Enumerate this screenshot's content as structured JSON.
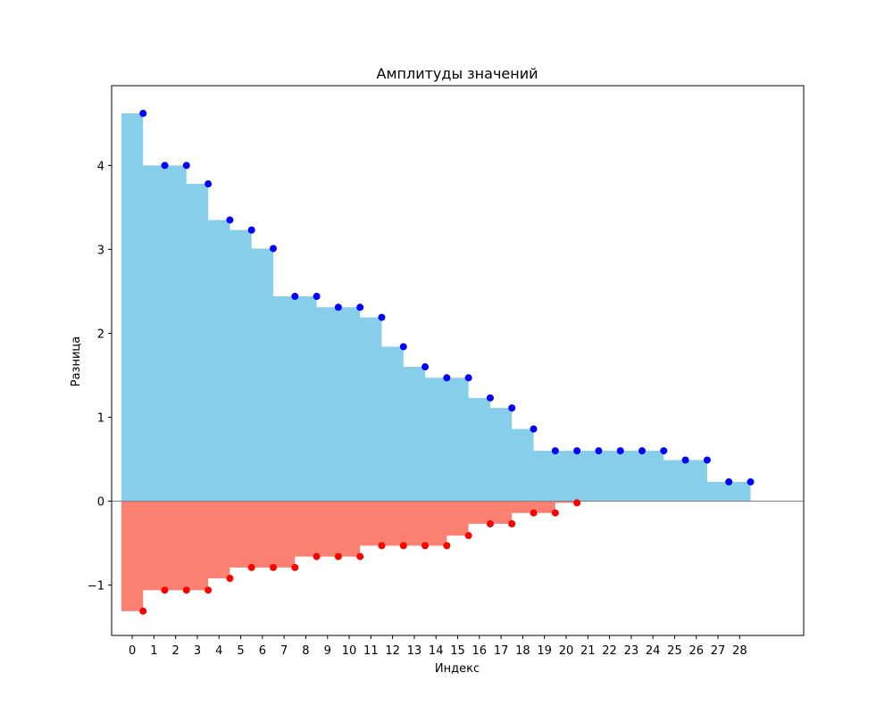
{
  "chart_data": {
    "type": "step",
    "title": "Амплитуды значений",
    "xlabel": "Индекс",
    "ylabel": "Разница",
    "x_ticks": [
      0,
      1,
      2,
      3,
      4,
      5,
      6,
      7,
      8,
      9,
      10,
      11,
      12,
      13,
      14,
      15,
      16,
      17,
      18,
      19,
      20,
      21,
      22,
      23,
      24,
      25,
      26,
      27,
      28
    ],
    "y_ticks": [
      -1,
      0,
      1,
      2,
      3,
      4
    ],
    "xlim": [
      -0.95,
      30.95
    ],
    "ylim": [
      -1.6,
      4.95
    ],
    "grid": false,
    "reference_line_y": 0,
    "series": [
      {
        "color": "#87CEEB",
        "marker_color": "#0000FF",
        "values": [
          4.62,
          4.0,
          4.0,
          3.78,
          3.35,
          3.23,
          3.01,
          2.44,
          2.44,
          2.31,
          2.31,
          2.19,
          1.84,
          1.6,
          1.47,
          1.47,
          1.23,
          1.11,
          0.86,
          0.6,
          0.6,
          0.6,
          0.6,
          0.6,
          0.6,
          0.49,
          0.49,
          0.23,
          0.23
        ]
      },
      {
        "color": "#FA8072",
        "marker_color": "#FF0000",
        "values": [
          -1.31,
          -1.06,
          -1.06,
          -1.06,
          -0.92,
          -0.79,
          -0.79,
          -0.79,
          -0.66,
          -0.66,
          -0.66,
          -0.53,
          -0.53,
          -0.53,
          -0.53,
          -0.41,
          -0.27,
          -0.27,
          -0.14,
          -0.14,
          -0.02
        ]
      }
    ]
  }
}
